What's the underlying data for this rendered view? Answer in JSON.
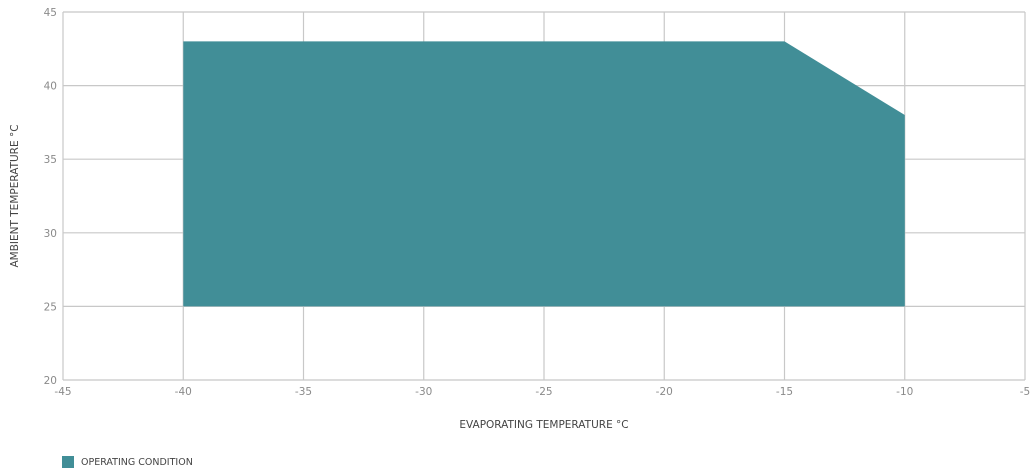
{
  "chart_data": {
    "type": "area",
    "xlabel": "EVAPORATING TEMPERATURE °C",
    "ylabel": "AMBIENT TEMPERATURE °C",
    "xlim": [
      -45,
      -5
    ],
    "ylim": [
      20,
      45
    ],
    "xticks": [
      -45,
      -40,
      -35,
      -30,
      -25,
      -20,
      -15,
      -10,
      -5
    ],
    "yticks": [
      20,
      25,
      30,
      35,
      40,
      45
    ],
    "grid": true,
    "legend_position": "bottom-left",
    "series": [
      {
        "name": "OPERATING CONDITION",
        "color": "#418e97",
        "polygon": [
          [
            -40,
            25
          ],
          [
            -40,
            43
          ],
          [
            -15,
            43
          ],
          [
            -10,
            38
          ],
          [
            -10,
            25
          ]
        ]
      }
    ]
  },
  "legend": {
    "items": [
      {
        "label": "OPERATING CONDITION",
        "color": "#418e97"
      }
    ]
  }
}
